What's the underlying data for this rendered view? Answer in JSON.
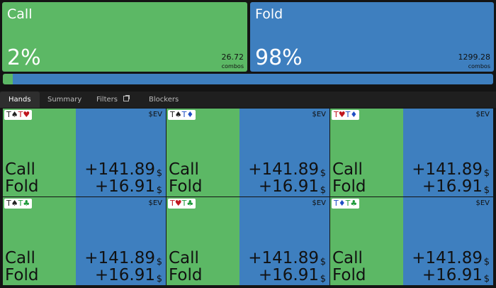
{
  "actions": [
    {
      "name": "Call",
      "frequency": {
        "value": 2,
        "label": "2%"
      },
      "combos": "26.72",
      "combos_label": "combos",
      "color": "#5cb865"
    },
    {
      "name": "Fold",
      "frequency": {
        "value": 98,
        "label": "98%"
      },
      "combos": "1299.28",
      "combos_label": "combos",
      "color": "#3e7fbf"
    }
  ],
  "tabs": [
    "Hands",
    "Summary",
    "Filters",
    "Blockers"
  ],
  "hands": [
    {
      "cards": [
        {
          "text": "T♠",
          "color": "#222222"
        },
        {
          "text": "T♥",
          "color": "#c0161e"
        }
      ],
      "ev_label": "$EV",
      "rows": [
        {
          "action": "Call",
          "ev": "+141.89",
          "unit": "$"
        },
        {
          "action": "Fold",
          "ev": "+16.91",
          "unit": "$"
        }
      ]
    },
    {
      "cards": [
        {
          "text": "T♠",
          "color": "#222222"
        },
        {
          "text": "T♦",
          "color": "#1f4fc4"
        }
      ],
      "ev_label": "$EV",
      "rows": [
        {
          "action": "Call",
          "ev": "+141.89",
          "unit": "$"
        },
        {
          "action": "Fold",
          "ev": "+16.91",
          "unit": "$"
        }
      ]
    },
    {
      "cards": [
        {
          "text": "T♥",
          "color": "#c0161e"
        },
        {
          "text": "T♦",
          "color": "#1f4fc4"
        }
      ],
      "ev_label": "$EV",
      "rows": [
        {
          "action": "Call",
          "ev": "+141.89",
          "unit": "$"
        },
        {
          "action": "Fold",
          "ev": "+16.91",
          "unit": "$"
        }
      ]
    },
    {
      "cards": [
        {
          "text": "T♠",
          "color": "#222222"
        },
        {
          "text": "T♣",
          "color": "#1e9a3a"
        }
      ],
      "ev_label": "$EV",
      "rows": [
        {
          "action": "Call",
          "ev": "+141.89",
          "unit": "$"
        },
        {
          "action": "Fold",
          "ev": "+16.91",
          "unit": "$"
        }
      ]
    },
    {
      "cards": [
        {
          "text": "T♥",
          "color": "#c0161e"
        },
        {
          "text": "T♣",
          "color": "#1e9a3a"
        }
      ],
      "ev_label": "$EV",
      "rows": [
        {
          "action": "Call",
          "ev": "+141.89",
          "unit": "$"
        },
        {
          "action": "Fold",
          "ev": "+16.91",
          "unit": "$"
        }
      ]
    },
    {
      "cards": [
        {
          "text": "T♦",
          "color": "#1f4fc4"
        },
        {
          "text": "T♣",
          "color": "#1e9a3a"
        }
      ],
      "ev_label": "$EV",
      "rows": [
        {
          "action": "Call",
          "ev": "+141.89",
          "unit": "$"
        },
        {
          "action": "Fold",
          "ev": "+16.91",
          "unit": "$"
        }
      ]
    }
  ]
}
